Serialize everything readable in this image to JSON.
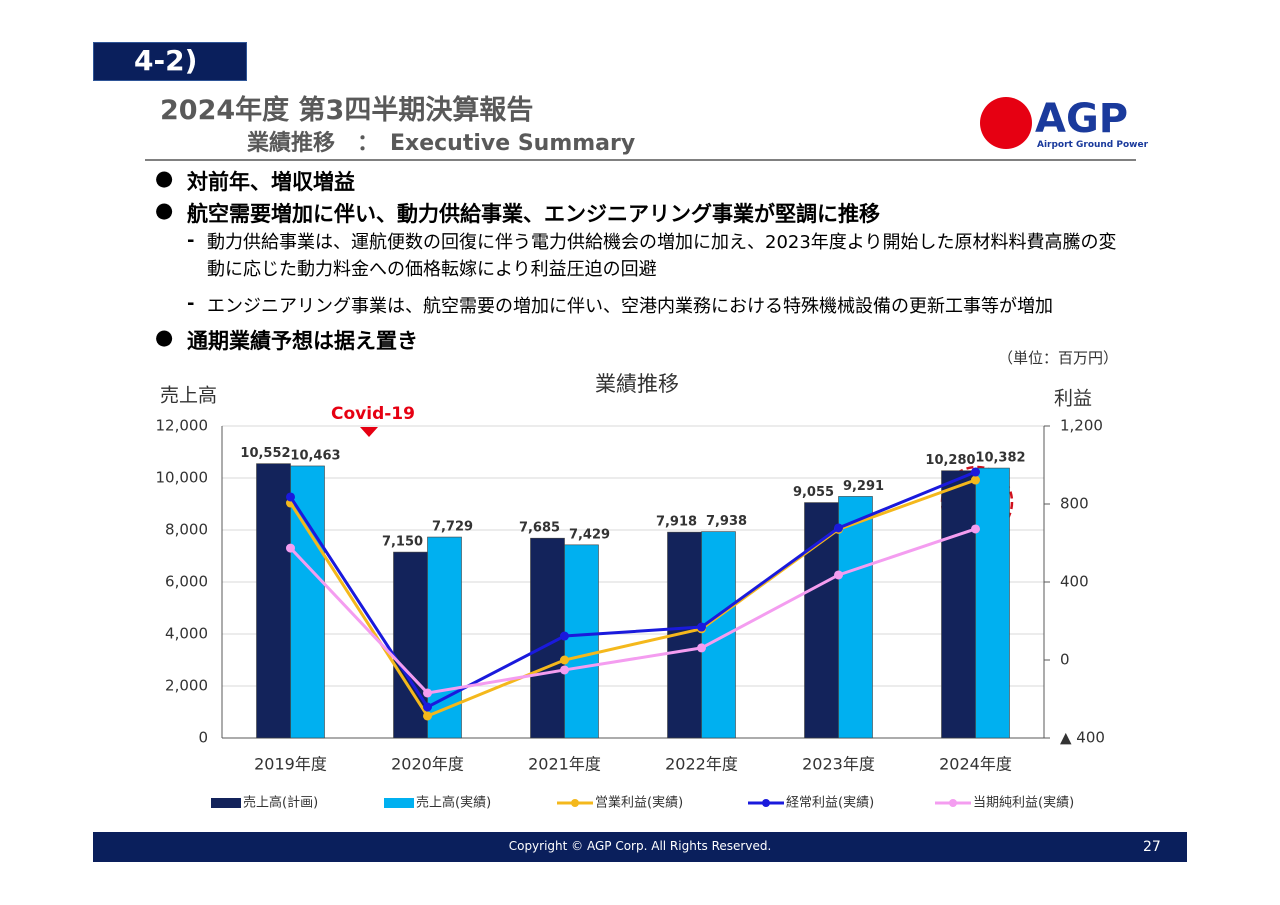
{
  "section": "4-2)",
  "header": {
    "title": "2024年度 第3四半期決算報告",
    "subtitle": "業績推移　：　Executive Summary"
  },
  "logo": {
    "name": "AGP",
    "tagline": "Airport Ground Power"
  },
  "bullets": [
    {
      "text": "対前年、増収増益"
    },
    {
      "text": "航空需要増加に伴い、動力供給事業、エンジニアリング事業が堅調に推移",
      "items": [
        "動力供給事業は、運航便数の回復に伴う電力供給機会の増加に加え、2023年度より開始した原材料料費高騰の変動に応じた動力料金への価格転嫁により利益圧迫の回避",
        "エンジニアリング事業は、航空需要の増加に伴い、空港内業務における特殊機械設備の更新工事等が増加"
      ]
    },
    {
      "text": "通期業績予想は据え置き"
    }
  ],
  "unit": "（単位：百万円）",
  "chart_data": {
    "type": "bar",
    "title": "業績推移",
    "y_label": "売上高",
    "y2_label": "利益",
    "annotation": "Covid-19",
    "categories": [
      "2019年度",
      "2020年度",
      "2021年度",
      "2022年度",
      "2023年度",
      "2024年度"
    ],
    "series": [
      {
        "name": "売上高(計画)",
        "type": "bar",
        "color": "#13235b",
        "values": [
          10552,
          7150,
          7685,
          7918,
          9055,
          10280
        ],
        "value_labels": [
          "10,552",
          "7,150",
          "7,685",
          "7,918",
          "9,055",
          "10,280"
        ]
      },
      {
        "name": "売上高(実績)",
        "type": "bar",
        "color": "#00b0f0",
        "values": [
          10463,
          7729,
          7429,
          7938,
          9291,
          10382
        ],
        "value_labels": [
          "10,463",
          "7,729",
          "7,429",
          "7,938",
          "9,291",
          "10,382"
        ]
      },
      {
        "name": "営業利益(実績)",
        "type": "line",
        "axis": "y2",
        "color": "#f4b81c",
        "values": [
          805,
          -287,
          0,
          160,
          670,
          923
        ]
      },
      {
        "name": "経常利益(実績)",
        "type": "line",
        "axis": "y2",
        "color": "#1a1adc",
        "values": [
          836,
          -241,
          123,
          169,
          677,
          964
        ]
      },
      {
        "name": "当期純利益(実績)",
        "type": "line",
        "axis": "y2",
        "color": "#f49df0",
        "values": [
          574,
          -169,
          -51,
          62,
          436,
          672
        ]
      }
    ],
    "ylim": [
      0,
      12000
    ],
    "yticks": [
      0,
      {
        "value": 2000,
        "label": "2,000"
      },
      {
        "value": 4000,
        "label": "4,000"
      },
      {
        "value": 6000,
        "label": "6,000"
      },
      {
        "value": 8000,
        "label": "8,000"
      },
      {
        "value": 10000,
        "label": "10,000"
      },
      {
        "value": 12000,
        "label": "12,000"
      }
    ],
    "y2lim": [
      -400,
      1200
    ],
    "y2ticks": [
      {
        "value": -400,
        "label": "▲ 400"
      },
      0,
      400,
      800,
      {
        "value": 1200,
        "label": "1,200"
      }
    ],
    "grid": true,
    "legend": "bottom"
  },
  "footer": {
    "copyright": "Copyright © AGP Corp. All Rights Reserved.",
    "page": "27"
  }
}
